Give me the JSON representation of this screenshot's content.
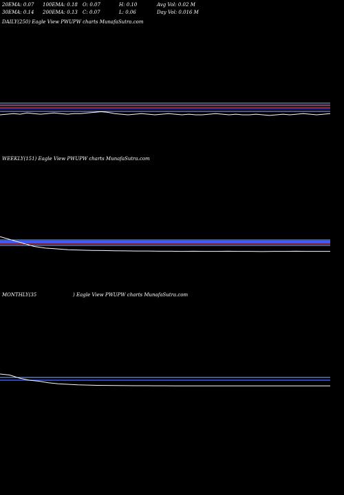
{
  "header": {
    "row1": [
      "20EMA: 0.07",
      "100EMA: 0.18",
      "O: 0.07",
      "H: 0.10",
      "Avg Vol: 0.02  M"
    ],
    "row2": [
      "30EMA: 0.14",
      "200EMA: 0.13",
      "C: 0.07",
      "L: 0.06",
      "Day Vol: 0.016  M"
    ]
  },
  "panels": {
    "daily_label": "DAILY(250) Eagle   View  PWUPW charts MunafaSutra.com",
    "weekly_label": "WEEKLY(151) Eagle   View  PWUPW charts MunafaSutra.com",
    "monthly_label": "MONTHLY(35",
    "monthly_label_tail": ") Eagle   View  PWUPW charts MunafaSutra.com"
  },
  "colors": {
    "background": "#000000",
    "price_line": "#ffffff",
    "ema_blue": "#3b5bff",
    "ema_light": "#8fb0ff",
    "ema_red": "#ff3b5b",
    "ema_pink": "#ff9bd0"
  },
  "chart_data": [
    {
      "type": "line",
      "title": "DAILY(250) Eagle   View  PWUPW charts MunafaSutra.com",
      "series": [
        {
          "values": [
            0.07,
            0.071,
            0.072,
            0.071,
            0.073,
            0.072,
            0.071,
            0.072,
            0.073,
            0.072,
            0.071,
            0.072,
            0.072,
            0.073,
            0.074,
            0.075,
            0.074,
            0.072,
            0.071,
            0.07,
            0.071,
            0.072,
            0.071,
            0.07,
            0.071,
            0.072,
            0.071,
            0.07,
            0.071,
            0.07,
            0.07,
            0.071,
            0.072,
            0.071,
            0.07,
            0.071,
            0.07,
            0.07,
            0.071,
            0.07,
            0.069,
            0.07,
            0.071,
            0.07,
            0.071,
            0.072,
            0.071,
            0.07,
            0.071,
            0.072
          ]
        }
      ],
      "ema_lines": [
        0.18,
        0.14,
        0.13,
        0.1,
        0.07
      ]
    },
    {
      "type": "line",
      "title": "WEEKLY(151) Eagle   View  PWUPW charts MunafaSutra.com",
      "series": [
        {
          "values": [
            0.16,
            0.14,
            0.12,
            0.1,
            0.09,
            0.085,
            0.08,
            0.078,
            0.076,
            0.075,
            0.074,
            0.073,
            0.072,
            0.072,
            0.071,
            0.071,
            0.07,
            0.071,
            0.07,
            0.07,
            0.071,
            0.07,
            0.07,
            0.069,
            0.07,
            0.07,
            0.071,
            0.07,
            0.07,
            0.07
          ]
        }
      ],
      "ema_lines": [
        0.14,
        0.13,
        0.1,
        0.07
      ]
    },
    {
      "type": "line",
      "title": "MONTHLY(35 ) Eagle   View  PWUPW charts MunafaSutra.com",
      "series": [
        {
          "values": [
            0.3,
            0.28,
            0.22,
            0.18,
            0.16,
            0.13,
            0.11,
            0.1,
            0.09,
            0.085,
            0.08,
            0.078,
            0.076,
            0.075,
            0.074,
            0.073,
            0.072,
            0.072,
            0.071,
            0.071,
            0.07,
            0.07,
            0.07,
            0.071,
            0.07,
            0.069,
            0.07,
            0.07,
            0.07,
            0.071,
            0.07,
            0.07,
            0.07,
            0.07,
            0.07
          ]
        }
      ],
      "ema_lines": [
        0.14,
        0.1
      ]
    }
  ]
}
